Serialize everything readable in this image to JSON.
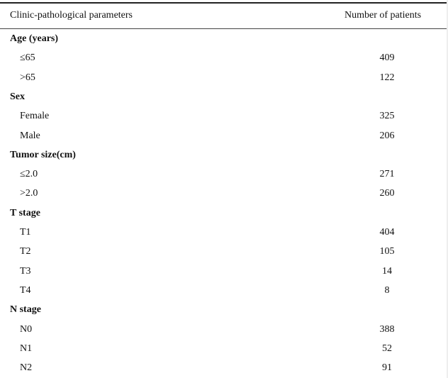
{
  "table": {
    "header": [
      "Clinic-pathological parameters",
      "Number of patients"
    ],
    "groups": [
      {
        "label": "Age (years)",
        "rows": [
          {
            "label": "≤65",
            "value": 409
          },
          {
            "label": ">65",
            "value": 122
          }
        ]
      },
      {
        "label": "Sex",
        "rows": [
          {
            "label": "Female",
            "value": 325
          },
          {
            "label": "Male",
            "value": 206
          }
        ]
      },
      {
        "label": "Tumor size(cm)",
        "rows": [
          {
            "label": "≤2.0",
            "value": 271
          },
          {
            "label": ">2.0",
            "value": 260
          }
        ]
      },
      {
        "label": "T stage",
        "rows": [
          {
            "label": "T1",
            "value": 404
          },
          {
            "label": "T2",
            "value": 105
          },
          {
            "label": "T3",
            "value": 14
          },
          {
            "label": "T4",
            "value": 8
          }
        ]
      },
      {
        "label": "N stage",
        "rows": [
          {
            "label": "N0",
            "value": 388
          },
          {
            "label": "N1",
            "value": 52
          },
          {
            "label": "N2",
            "value": 91
          }
        ]
      }
    ]
  }
}
